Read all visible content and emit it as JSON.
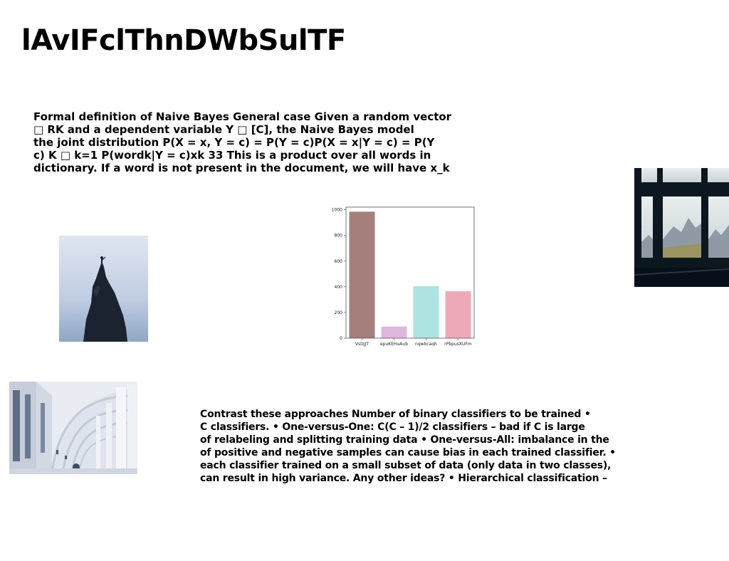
{
  "slide": {
    "title": "lAvIFclThnDWbSulTF",
    "paragraph_1_lines": [
      "Formal definition of Naive Bayes General case Given a random vector",
      "□ RK and a dependent variable Y □ [C], the Naive Bayes model",
      "the joint distribution P(X = x, Y = c) = P(Y = c)P(X = x|Y = c) = P(Y",
      "c) K □ k=1 P(wordk|Y = c)xk 33 This is a product over all words in",
      "dictionary. If a word is not present in the document, we will have x_k"
    ],
    "paragraph_2_lines": [
      "Contrast these approaches Number of binary classifiers to be trained •",
      "C classifiers. • One-versus-One: C(C – 1)/2 classifiers – bad if C is large",
      "of relabeling and splitting training data • One-versus-All: imbalance in the",
      "of positive and negative samples can cause bias in each trained classifier. •",
      "each classifier trained on a small subset of data (only data in two classes),",
      "can result in high variance. Any other ideas? • Hierarchical classification –"
    ]
  },
  "images": {
    "climber": "photo of a climber on a rock pinnacle against a pale blue sky",
    "window": "photo of a window overlooking mountains",
    "arches": "photo of a white arched corridor"
  },
  "chart_data": {
    "type": "bar",
    "categories": [
      "VslzjJT",
      "epuKEHuAub",
      "nqwbcaqh",
      "rPbpusXUFm"
    ],
    "values": [
      985,
      90,
      405,
      365
    ],
    "colors": [
      "#a57f7a",
      "#dfb6dc",
      "#ade3e1",
      "#eea9b8"
    ],
    "yticks": [
      0,
      200,
      400,
      600,
      800,
      1000
    ],
    "ylim": [
      0,
      1020
    ],
    "grid": false,
    "title": "",
    "xlabel": "",
    "ylabel": ""
  }
}
